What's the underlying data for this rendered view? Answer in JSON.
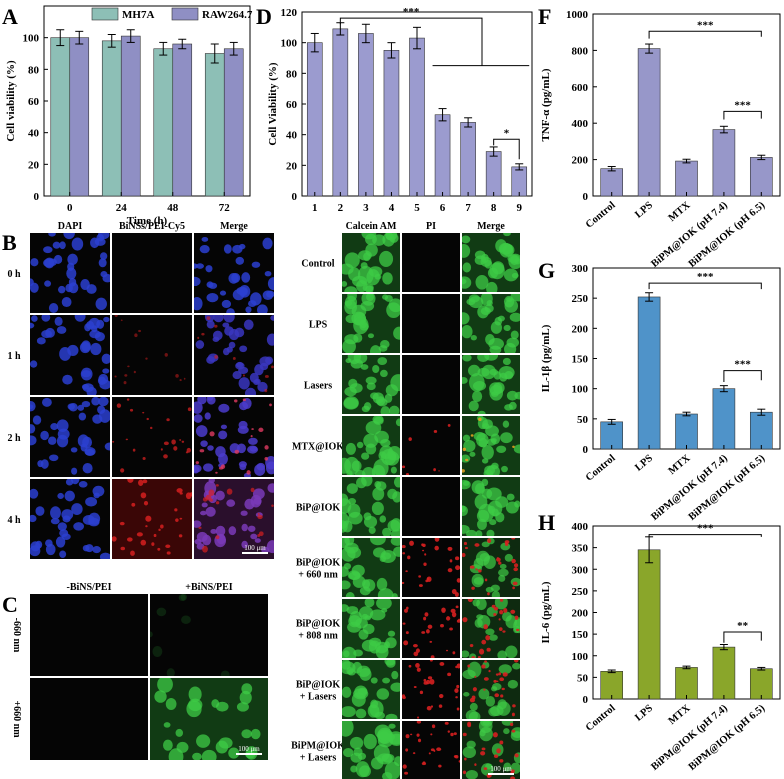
{
  "colors": {
    "mh7a": "#8dbfb6",
    "raw": "#8f8fc4",
    "panelD": "#9b9bcf",
    "tnf": "#9797c9",
    "il1b": "#4f93c9",
    "il6": "#8aa62a",
    "blue_cell": "#2b3fd0",
    "red_cell": "#d62020",
    "green_cell": "#3ecb46"
  },
  "panel_letters": {
    "a": "A",
    "b": "B",
    "c": "C",
    "d": "D",
    "e": "E",
    "f": "F",
    "g": "G",
    "h": "H"
  },
  "chart_data": [
    {
      "id": "A",
      "type": "bar",
      "categories": [
        "0",
        "24",
        "48",
        "72"
      ],
      "series": [
        {
          "name": "MH7A",
          "values": [
            100,
            98,
            93,
            90
          ],
          "errors": [
            5,
            4,
            4,
            6
          ]
        },
        {
          "name": "RAW264.7",
          "values": [
            100,
            101,
            96,
            93
          ],
          "errors": [
            4,
            4,
            3,
            4
          ]
        }
      ],
      "xlabel": "Time (h)",
      "ylabel": "Cell viability (%)",
      "ylim": [
        0,
        120
      ],
      "yticks": [
        "0",
        "20",
        "40",
        "60",
        "80",
        "100"
      ],
      "legend": "top"
    },
    {
      "id": "D",
      "type": "bar",
      "categories": [
        "1",
        "2",
        "3",
        "4",
        "5",
        "6",
        "7",
        "8",
        "9"
      ],
      "values": [
        100,
        109,
        106,
        95,
        103,
        53,
        48,
        29,
        19
      ],
      "errors": [
        6,
        4,
        6,
        5,
        7,
        4,
        3,
        3,
        2
      ],
      "xlabel": "",
      "ylabel": "Cell Viability (%)",
      "ylim": [
        0,
        120
      ],
      "yticks": [
        "0",
        "20",
        "40",
        "60",
        "80",
        "100",
        "120"
      ],
      "annotations": [
        "***",
        "*"
      ]
    },
    {
      "id": "F",
      "type": "bar",
      "categories": [
        "Control",
        "LPS",
        "MTX",
        "BiPM@IOK (pH 7.4)",
        "BiPM@IOK (pH 6.5)"
      ],
      "values": [
        150,
        810,
        192,
        365,
        212
      ],
      "errors": [
        12,
        25,
        10,
        18,
        12
      ],
      "ylabel": "TNF-α (pg/mL)",
      "ylim": [
        0,
        1000
      ],
      "yticks": [
        "0",
        "200",
        "400",
        "600",
        "800",
        "1000"
      ],
      "annotations": [
        "***",
        "***"
      ]
    },
    {
      "id": "G",
      "type": "bar",
      "categories": [
        "Control",
        "LPS",
        "MTX",
        "BiPM@IOK (pH 7.4)",
        "BiPM@IOK (pH 6.5)"
      ],
      "values": [
        45,
        252,
        58,
        100,
        61
      ],
      "errors": [
        4,
        7,
        3,
        5,
        5
      ],
      "ylabel": "IL-1β (pg/mL)",
      "ylim": [
        0,
        300
      ],
      "yticks": [
        "0",
        "50",
        "100",
        "150",
        "200",
        "250",
        "300"
      ],
      "annotations": [
        "***",
        "***"
      ]
    },
    {
      "id": "H",
      "type": "bar",
      "categories": [
        "Control",
        "LPS",
        "MTX",
        "BiPM@IOK (pH 7.4)",
        "BiPM@IOK (pH 6.5)"
      ],
      "values": [
        64,
        345,
        73,
        120,
        70
      ],
      "errors": [
        3,
        30,
        3,
        6,
        3
      ],
      "ylabel": "IL-6 (pg/mL)",
      "ylim": [
        0,
        400
      ],
      "yticks": [
        "0",
        "50",
        "100",
        "150",
        "200",
        "250",
        "300",
        "350",
        "400"
      ],
      "annotations": [
        "***",
        "**"
      ]
    }
  ],
  "panelB": {
    "columns": [
      "DAPI",
      "BiNSs/PEI-Cy5",
      "Merge"
    ],
    "rows": [
      "0 h",
      "1 h",
      "2 h",
      "4 h"
    ],
    "scale_bar": "100 μm"
  },
  "panelC": {
    "columns": [
      "-BiNS/PEI",
      "+BiNS/PEI"
    ],
    "rows": [
      "-660 nm",
      "+660 nm"
    ],
    "scale_bar": "100 μm"
  },
  "panelE": {
    "columns": [
      "Calcein AM",
      "PI",
      "Merge"
    ],
    "rows": [
      [
        "Control"
      ],
      [
        "LPS"
      ],
      [
        "Lasers"
      ],
      [
        "MTX@IOK"
      ],
      [
        "BiP@IOK"
      ],
      [
        "BiP@IOK",
        "+ 660 nm"
      ],
      [
        "BiP@IOK",
        "+ 808 nm"
      ],
      [
        "BiP@IOK",
        "+ Lasers"
      ],
      [
        "BiPM@IOK",
        "+ Lasers"
      ]
    ],
    "scale_bar": "100 μm"
  }
}
